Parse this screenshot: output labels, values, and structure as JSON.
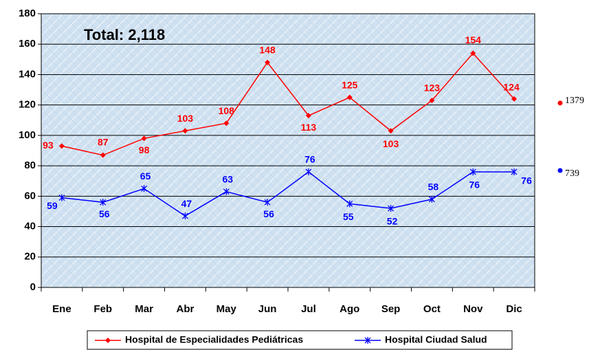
{
  "chart_data": {
    "type": "line",
    "title": "Total: 2,118",
    "categories": [
      "Ene",
      "Feb",
      "Mar",
      "Abr",
      "May",
      "Jun",
      "Jul",
      "Ago",
      "Sep",
      "Oct",
      "Nov",
      "Dic"
    ],
    "series": [
      {
        "name": "Hospital de Especialidades Pediátricas",
        "color": "#ff0000",
        "marker": "diamond",
        "values": [
          93,
          87,
          98,
          103,
          108,
          148,
          113,
          125,
          103,
          123,
          154,
          124
        ],
        "total": 1379
      },
      {
        "name": "Hospital Ciudad Salud",
        "color": "#0000ff",
        "marker": "asterisk",
        "values": [
          59,
          56,
          65,
          47,
          63,
          56,
          76,
          55,
          52,
          58,
          76,
          76
        ],
        "total": 739
      }
    ],
    "ylim": [
      0,
      180
    ],
    "yticks": [
      0,
      20,
      40,
      60,
      80,
      100,
      120,
      140,
      160,
      180
    ],
    "grid": true,
    "legend": "bottom"
  }
}
